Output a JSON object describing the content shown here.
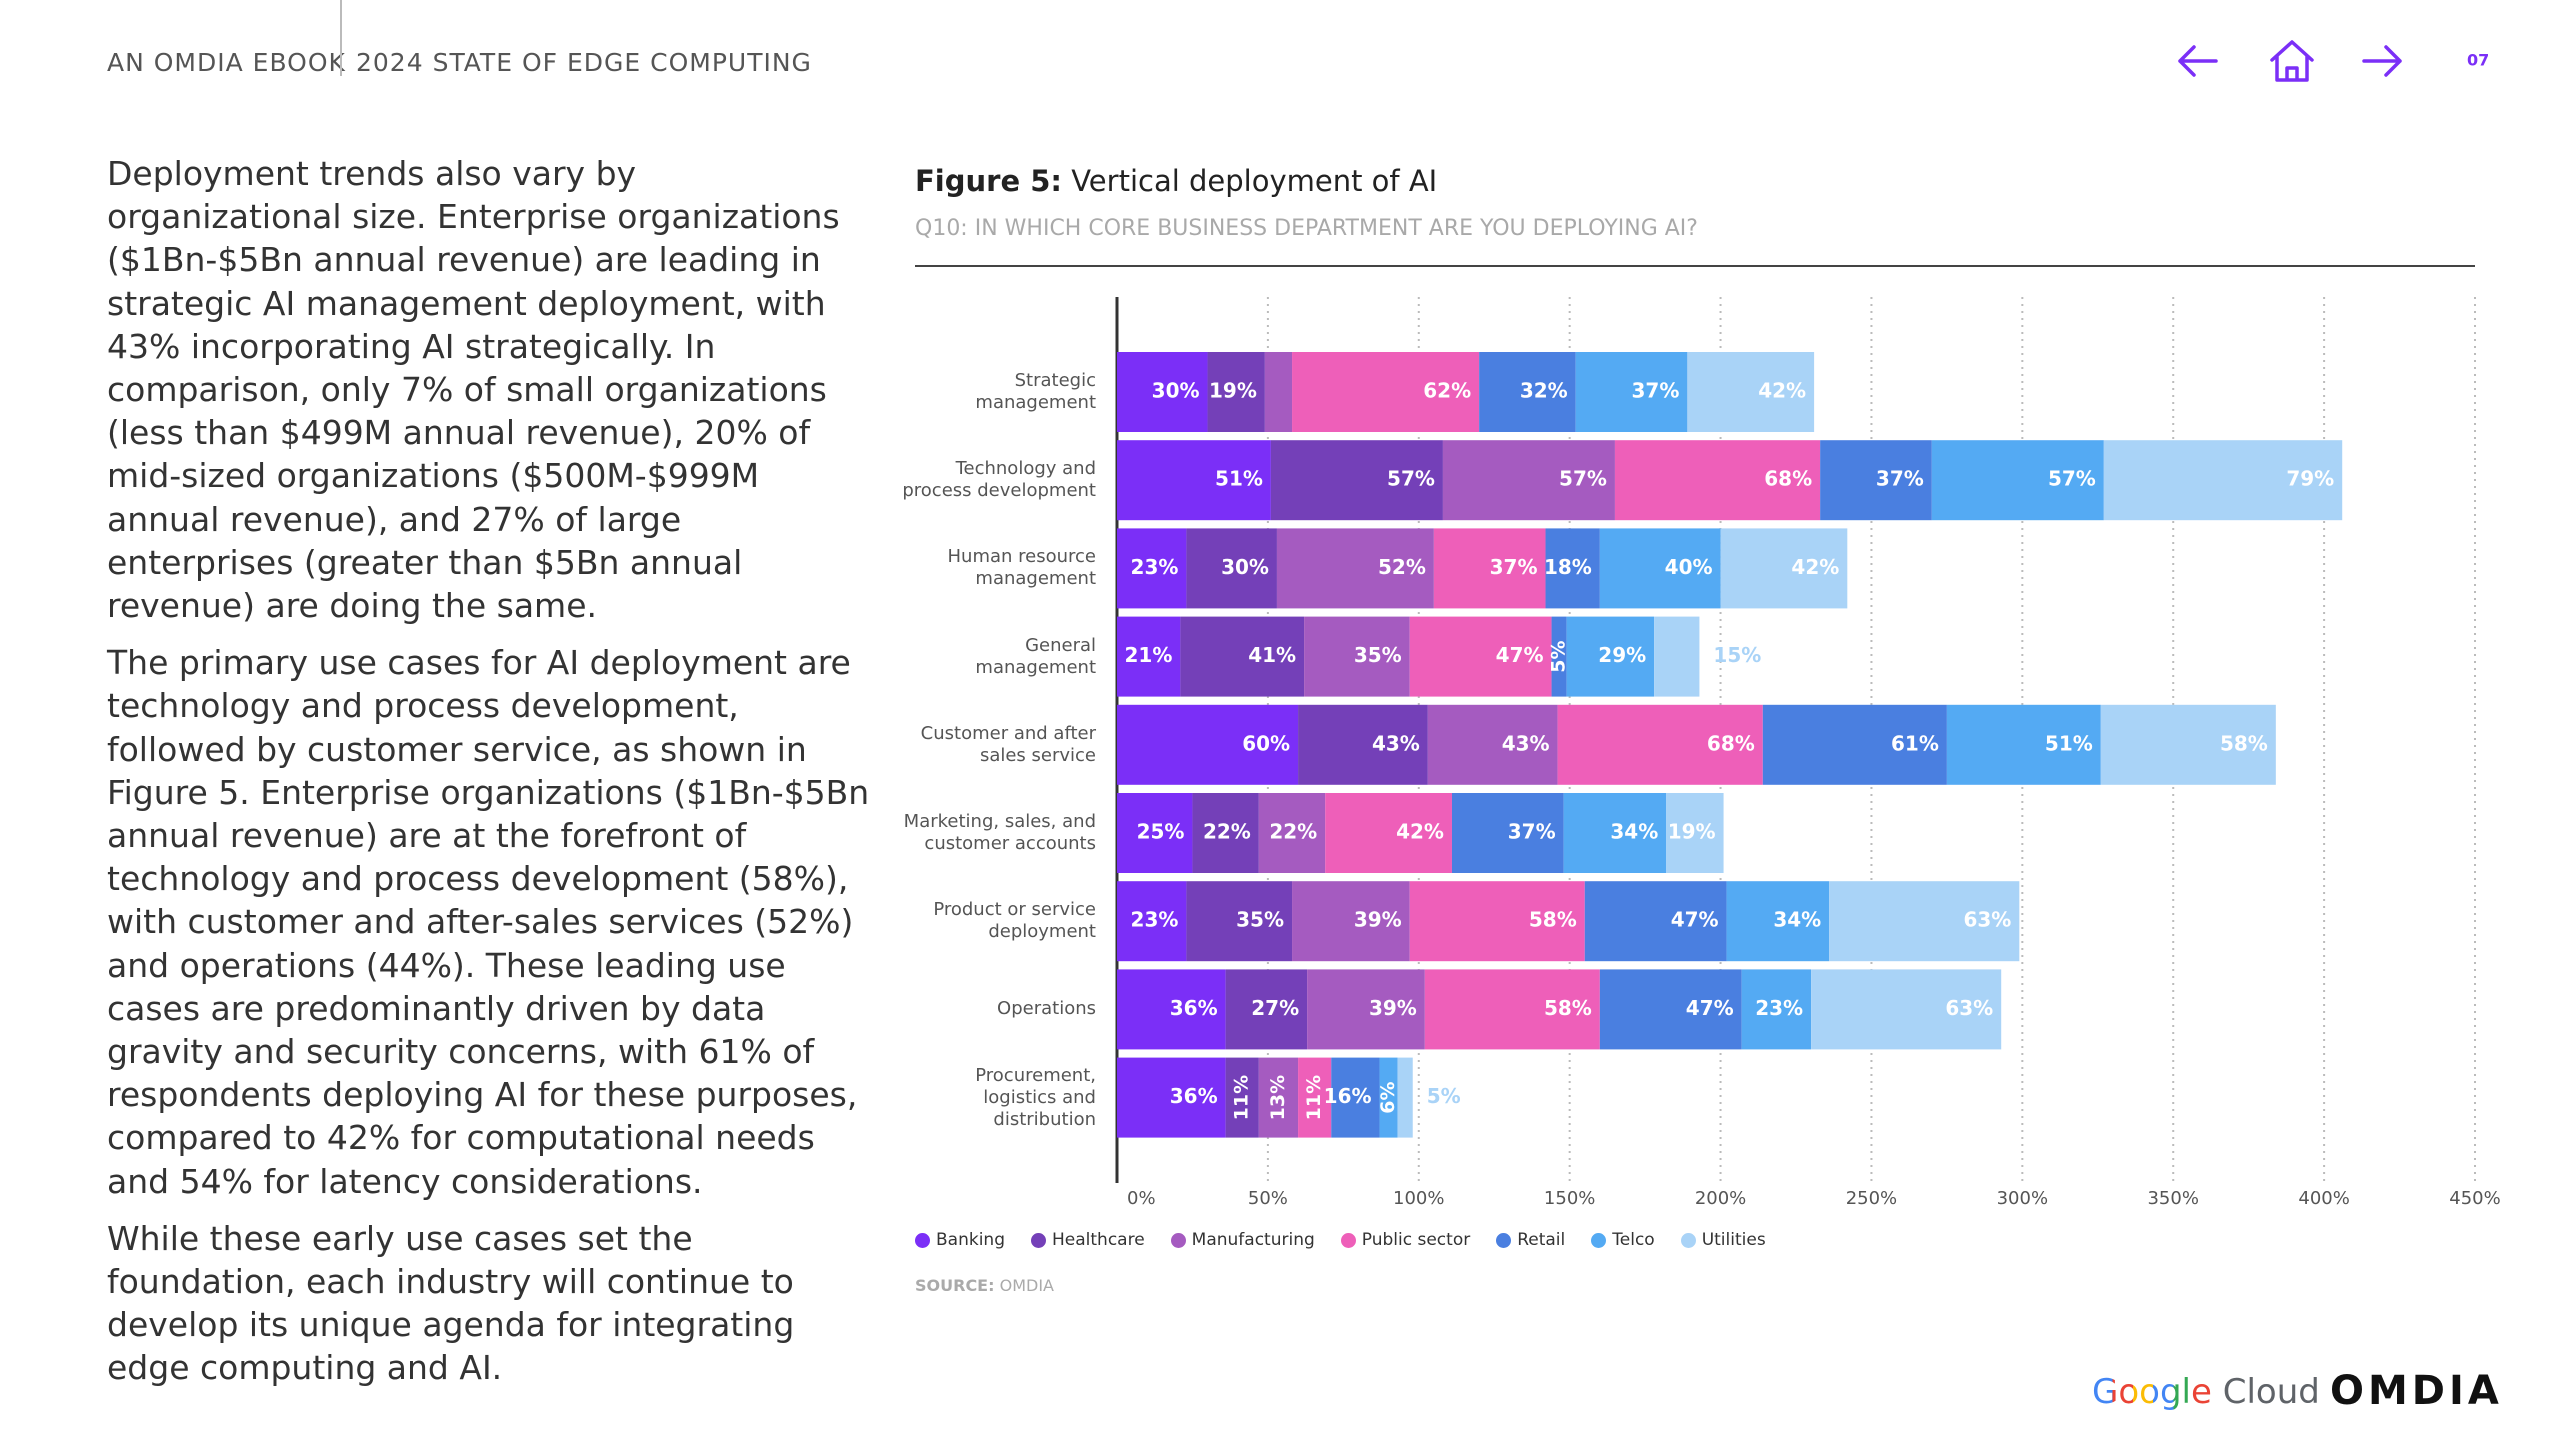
{
  "header": {
    "publisher": "AN OMDIA EBOOK",
    "title": "2024 STATE OF EDGE COMPUTING",
    "page": "07"
  },
  "body": {
    "paragraphs": [
      "Deployment trends also vary by organizational size. Enterprise organizations ($1Bn-$5Bn annual revenue) are leading in strategic AI management deployment, with 43% incorporating AI strategically. In comparison, only 7% of small organizations (less than $499M annual revenue), 20% of mid-sized organizations ($500M-$999M annual revenue), and 27% of large enterprises (greater than $5Bn annual revenue) are doing the same.",
      "The primary use cases for AI deployment are technology and process development, followed by customer service, as shown in Figure 5. Enterprise organizations ($1Bn-$5Bn annual revenue) are at the forefront of technology and process development (58%), with customer and after-sales services (52%) and operations (44%). These leading use cases are predominantly driven by data gravity and security concerns, with 61% of respondents deploying AI for these purposes, compared to 42% for computational needs and 54% for latency considerations.",
      "While these early use cases set the foundation, each industry will continue to develop its unique agenda for integrating edge computing and AI."
    ]
  },
  "chart_data": {
    "type": "bar",
    "orientation": "horizontal",
    "stacked": true,
    "figure_label": "Figure 5:",
    "title": "Vertical deployment of AI",
    "subtitle": "Q10: IN WHICH CORE BUSINESS DEPARTMENT ARE YOU DEPLOYING AI?",
    "categories": [
      "Strategic\nmanagement",
      "Technology and\nprocess development",
      "Human resource\nmanagement",
      "General\nmanagement",
      "Customer and after\nsales service",
      "Marketing, sales, and\ncustomer accounts",
      "Product or service\ndeployment",
      "Operations",
      "Procurement,\nlogistics and\ndistribution"
    ],
    "series": [
      {
        "name": "Banking",
        "color": "#7b2ff7",
        "values": [
          30,
          51,
          23,
          21,
          60,
          25,
          23,
          36,
          36
        ],
        "value_labels": [
          "30%",
          "51%",
          "23%",
          "21%",
          "60%",
          "25%",
          "23%",
          "36%",
          "36%"
        ]
      },
      {
        "name": "Healthcare",
        "color": "#7440b8",
        "values": [
          19,
          57,
          30,
          41,
          43,
          22,
          35,
          27,
          11
        ],
        "value_labels": [
          "19%",
          "57%",
          "30%",
          "41%",
          "43%",
          "22%",
          "35%",
          "27%",
          "11%"
        ]
      },
      {
        "name": "Manufacturing",
        "color": "#a55bc0",
        "values": [
          9,
          57,
          52,
          35,
          43,
          22,
          39,
          39,
          13
        ],
        "value_labels": [
          null,
          "57%",
          "52%",
          "35%",
          "43%",
          "22%",
          "39%",
          "39%",
          "13%"
        ]
      },
      {
        "name": "Public sector",
        "color": "#ee5fb9",
        "values": [
          62,
          68,
          37,
          47,
          68,
          42,
          58,
          58,
          11
        ],
        "value_labels": [
          "62%",
          "68%",
          "37%",
          "47%",
          "68%",
          "42%",
          "58%",
          "58%",
          "11%"
        ]
      },
      {
        "name": "Retail",
        "color": "#4a7fe0",
        "values": [
          32,
          37,
          18,
          5,
          61,
          37,
          47,
          47,
          16
        ],
        "value_labels": [
          "32%",
          "37%",
          "18%",
          "5%",
          "61%",
          "37%",
          "47%",
          "47%",
          "16%"
        ]
      },
      {
        "name": "Telco",
        "color": "#54aaf3",
        "values": [
          37,
          57,
          40,
          29,
          51,
          34,
          34,
          23,
          6
        ],
        "value_labels": [
          "37%",
          "57%",
          "40%",
          "29%",
          "51%",
          "34%",
          "34%",
          "23%",
          "6%"
        ]
      },
      {
        "name": "Utilities",
        "color": "#a9d3f7",
        "values": [
          42,
          79,
          42,
          15,
          58,
          19,
          63,
          63,
          5
        ],
        "value_labels": [
          "42%",
          "79%",
          "42%",
          "15%",
          "58%",
          "19%",
          "63%",
          "63%",
          "5%"
        ]
      }
    ],
    "xlim": [
      0,
      450
    ],
    "xticks": [
      {
        "value": 0,
        "label": "0%"
      },
      {
        "value": 50,
        "label": "50%"
      },
      {
        "value": 100,
        "label": "100%"
      },
      {
        "value": 150,
        "label": "150%"
      },
      {
        "value": 200,
        "label": "200%"
      },
      {
        "value": 250,
        "label": "250%"
      },
      {
        "value": 300,
        "label": "300%"
      },
      {
        "value": 350,
        "label": "350%"
      },
      {
        "value": 400,
        "label": "400%"
      },
      {
        "value": 450,
        "label": "450%"
      }
    ],
    "grid": true,
    "legend": "bottom",
    "source_label": "SOURCE:",
    "source": "OMDIA"
  },
  "footer": {
    "google": "Google",
    "cloud": "Cloud",
    "omdia": "OMDIA"
  }
}
